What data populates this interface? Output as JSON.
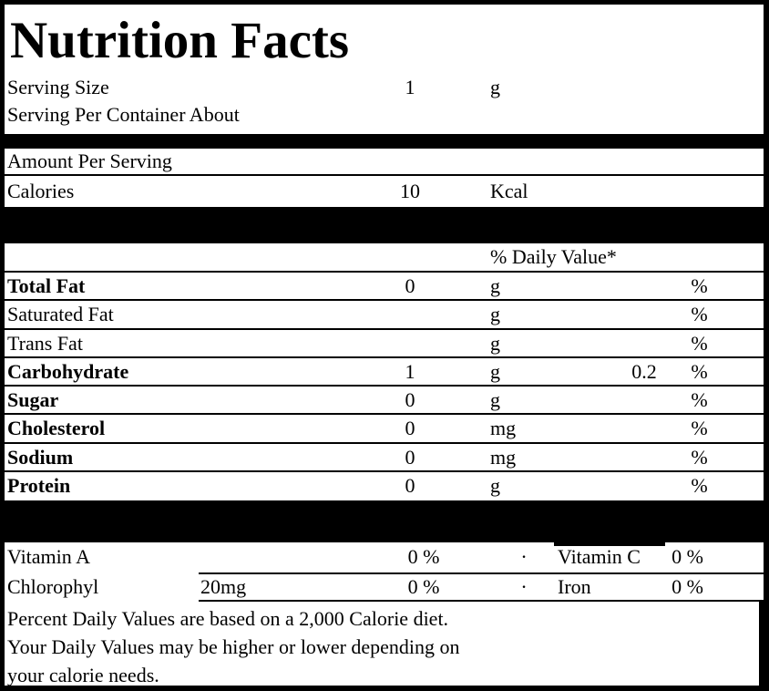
{
  "title": "Nutrition Facts",
  "serving": {
    "size_label": "Serving Size",
    "size_value": "1",
    "size_unit": "g",
    "per_container_label": "Serving Per Container About"
  },
  "amount_per_serving_label": "Amount Per Serving",
  "calories": {
    "label": "Calories",
    "value": "10",
    "unit": "Kcal"
  },
  "daily_value_header": "% Daily Value*",
  "nutrients": [
    {
      "label": "Total Fat",
      "amount": "0",
      "unit": "g",
      "dv": "",
      "pct": "%"
    },
    {
      "label": "Saturated Fat",
      "amount": "",
      "unit": "g",
      "dv": "",
      "pct": "%"
    },
    {
      "label": "Trans Fat",
      "amount": "",
      "unit": "g",
      "dv": "",
      "pct": "%"
    },
    {
      "label": "Carbohydrate",
      "amount": "1",
      "unit": "g",
      "dv": "0.2",
      "pct": "%"
    },
    {
      "label": "Sugar",
      "amount": "0",
      "unit": "g",
      "dv": "",
      "pct": "%"
    },
    {
      "label": "Cholesterol",
      "amount": "0",
      "unit": "mg",
      "dv": "",
      "pct": "%"
    },
    {
      "label": "Sodium",
      "amount": "0",
      "unit": "mg",
      "dv": "",
      "pct": "%"
    },
    {
      "label": "Protein",
      "amount": "0",
      "unit": "g",
      "dv": "",
      "pct": "%"
    }
  ],
  "vitamins": [
    {
      "label": "Vitamin A",
      "amount": "",
      "value": "0 %",
      "bullet": "·",
      "name2": "Vitamin C",
      "value2": "0 %"
    },
    {
      "label": "Chlorophyl",
      "amount": "20mg",
      "value": "0 %",
      "bullet": "·",
      "name2": "Iron",
      "value2": "0 %"
    }
  ],
  "footnote": {
    "line1": "Percent Daily Values are based on a 2,000 Calorie diet.",
    "line2": "Your Daily Values may be higher or lower depending on",
    "line3": "your calorie needs."
  },
  "colors": {
    "ink": "#000000",
    "paper": "#ffffff"
  }
}
